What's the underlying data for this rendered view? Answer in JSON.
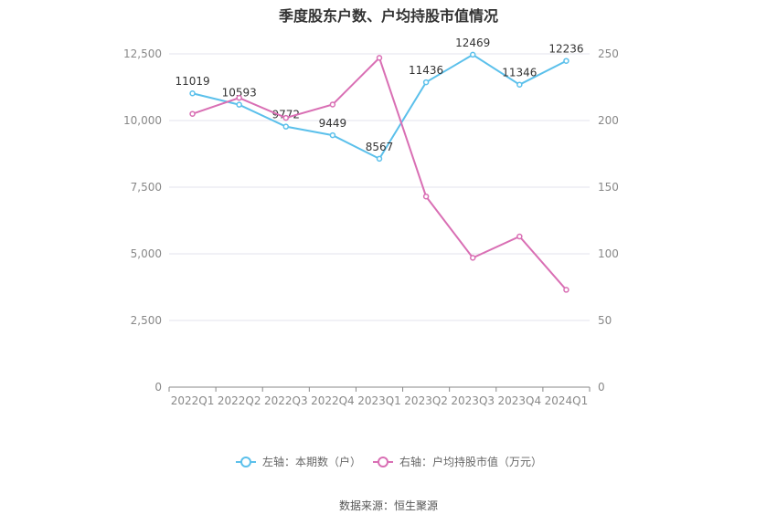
{
  "chart_data": {
    "type": "line",
    "title": "季度股东户数、户均持股市值情况",
    "categories": [
      "2022Q1",
      "2022Q2",
      "2022Q3",
      "2022Q4",
      "2023Q1",
      "2023Q2",
      "2023Q3",
      "2023Q4",
      "2024Q1"
    ],
    "series": [
      {
        "name": "左轴：本期数（户）",
        "axis": "left",
        "color": "#5bc0eb",
        "values": [
          11019,
          10593,
          9772,
          9449,
          8567,
          11436,
          12469,
          11346,
          12236
        ],
        "labels": [
          "11019",
          "10593",
          "9772",
          "9449",
          "8567",
          "11436",
          "12469",
          "11346",
          "12236"
        ]
      },
      {
        "name": "右轴：户均持股市值（万元）",
        "axis": "right",
        "color": "#d96fb4",
        "values": [
          205,
          217,
          202,
          212,
          247,
          143,
          97,
          113,
          73
        ]
      }
    ],
    "y_left": {
      "min": 0,
      "max": 12500,
      "ticks": [
        "0",
        "2,500",
        "5,000",
        "7,500",
        "10,000",
        "12,500"
      ]
    },
    "y_right": {
      "min": 0,
      "max": 250,
      "ticks": [
        "0",
        "50",
        "100",
        "150",
        "200",
        "250"
      ]
    },
    "grid": true,
    "legend": "bottom-center"
  },
  "footer": {
    "source": "数据来源：恒生聚源"
  }
}
